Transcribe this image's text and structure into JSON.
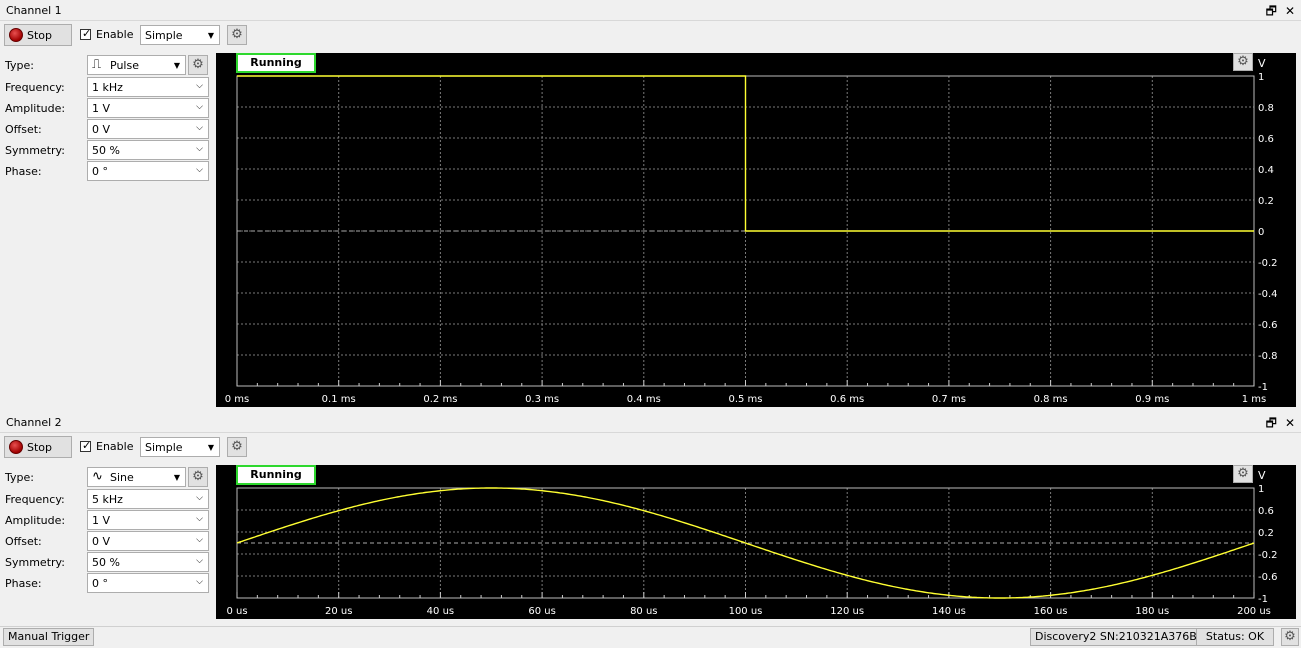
{
  "colors": {
    "trace": "#ffff32",
    "grid": "#7a7a7a",
    "running_border": "#2ed82e",
    "plot_bg": "#000000"
  },
  "channels": [
    {
      "title": "Channel 1",
      "stop_label": "Stop",
      "enable_label": "Enable",
      "enabled": true,
      "mode": "Simple",
      "type": {
        "label": "Type:",
        "value": "Pulse",
        "icon": "pulse-wave-icon"
      },
      "params": [
        {
          "label": "Frequency:",
          "value": "1 kHz"
        },
        {
          "label": "Amplitude:",
          "value": "1 V"
        },
        {
          "label": "Offset:",
          "value": "0 V"
        },
        {
          "label": "Symmetry:",
          "value": "50 %"
        },
        {
          "label": "Phase:",
          "value": "0 °"
        }
      ],
      "status": "Running",
      "y_unit": "V"
    },
    {
      "title": "Channel 2",
      "stop_label": "Stop",
      "enable_label": "Enable",
      "enabled": true,
      "mode": "Simple",
      "type": {
        "label": "Type:",
        "value": "Sine",
        "icon": "sine-wave-icon"
      },
      "params": [
        {
          "label": "Frequency:",
          "value": "5 kHz"
        },
        {
          "label": "Amplitude:",
          "value": "1 V"
        },
        {
          "label": "Offset:",
          "value": "0 V"
        },
        {
          "label": "Symmetry:",
          "value": "50 %"
        },
        {
          "label": "Phase:",
          "value": "0 °"
        }
      ],
      "status": "Running",
      "y_unit": "V"
    }
  ],
  "chart_data": [
    {
      "type": "line",
      "series": [
        {
          "x": [
            0,
            0.5,
            0.5,
            1.0
          ],
          "y": [
            1,
            1,
            0,
            0
          ]
        }
      ],
      "x_ticks": [
        "0 ms",
        "0.1 ms",
        "0.2 ms",
        "0.3 ms",
        "0.4 ms",
        "0.5 ms",
        "0.6 ms",
        "0.7 ms",
        "0.8 ms",
        "0.9 ms",
        "1 ms"
      ],
      "y_ticks": [
        "1",
        "0.8",
        "0.6",
        "0.4",
        "0.2",
        "0",
        "-0.2",
        "-0.4",
        "-0.6",
        "-0.8",
        "-1"
      ],
      "xlim": [
        0,
        1
      ],
      "ylim": [
        -1,
        1
      ],
      "x_unit": "ms",
      "y_unit": "V",
      "grid": true
    },
    {
      "type": "line",
      "series": [
        {
          "function": "sine",
          "frequency_khz": 5,
          "amplitude": 1,
          "offset": 0,
          "phase_deg": 0
        }
      ],
      "x_ticks": [
        "0 us",
        "20 us",
        "40 us",
        "60 us",
        "80 us",
        "100 us",
        "120 us",
        "140 us",
        "160 us",
        "180 us",
        "200 us"
      ],
      "y_ticks": [
        "1",
        "0.6",
        "0.2",
        "-0.2",
        "-0.6",
        "-1"
      ],
      "xlim": [
        0,
        200
      ],
      "ylim": [
        -1,
        1
      ],
      "x_unit": "us",
      "y_unit": "V",
      "grid": true
    }
  ],
  "status_bar": {
    "manual_trigger": "Manual Trigger",
    "device": "Discovery2 SN:210321A376B4",
    "status": "Status: OK"
  }
}
